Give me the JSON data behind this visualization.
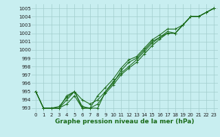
{
  "xlabel": "Graphe pression niveau de la mer (hPa)",
  "background_color": "#c8eef0",
  "grid_color": "#a0cccc",
  "line_color": "#1a6b1a",
  "ylim": [
    992.5,
    1005.5
  ],
  "xlim": [
    -0.5,
    23.5
  ],
  "yticks": [
    993,
    994,
    995,
    996,
    997,
    998,
    999,
    1000,
    1001,
    1002,
    1003,
    1004,
    1005
  ],
  "xticks": [
    0,
    1,
    2,
    3,
    4,
    5,
    6,
    7,
    8,
    9,
    10,
    11,
    12,
    13,
    14,
    15,
    16,
    17,
    18,
    19,
    20,
    21,
    22,
    23
  ],
  "series": [
    [
      995.0,
      993.0,
      993.0,
      993.0,
      994.0,
      995.0,
      993.0,
      993.0,
      993.0,
      995.0,
      996.0,
      997.5,
      998.5,
      999.0,
      1000.0,
      1001.0,
      1001.5,
      1002.0,
      1002.0,
      1003.0,
      1004.0,
      1004.0,
      1004.5,
      1005.0
    ],
    [
      995.0,
      993.0,
      993.0,
      993.2,
      994.3,
      995.0,
      993.2,
      993.0,
      994.5,
      995.5,
      996.5,
      997.8,
      998.8,
      999.2,
      1000.2,
      1001.2,
      1001.8,
      1002.5,
      1002.5,
      1003.0,
      1004.0,
      1004.0,
      1004.5,
      1005.0
    ],
    [
      995.0,
      993.0,
      993.0,
      993.0,
      994.5,
      995.0,
      994.0,
      993.5,
      994.0,
      995.0,
      996.2,
      997.2,
      998.0,
      998.8,
      999.8,
      1000.8,
      1001.5,
      1002.2,
      1002.0,
      1003.0,
      1004.0,
      1004.0,
      1004.5,
      1005.0
    ],
    [
      995.0,
      993.0,
      993.0,
      993.0,
      993.5,
      994.5,
      993.0,
      993.0,
      993.5,
      994.8,
      995.8,
      997.0,
      997.8,
      998.5,
      999.5,
      1000.5,
      1001.3,
      1002.0,
      1002.0,
      1003.0,
      1004.0,
      1004.0,
      1004.5,
      1005.0
    ]
  ],
  "marker": "+",
  "markersize": 3,
  "linewidth": 0.8,
  "tick_fontsize": 5,
  "xlabel_fontsize": 6.5
}
